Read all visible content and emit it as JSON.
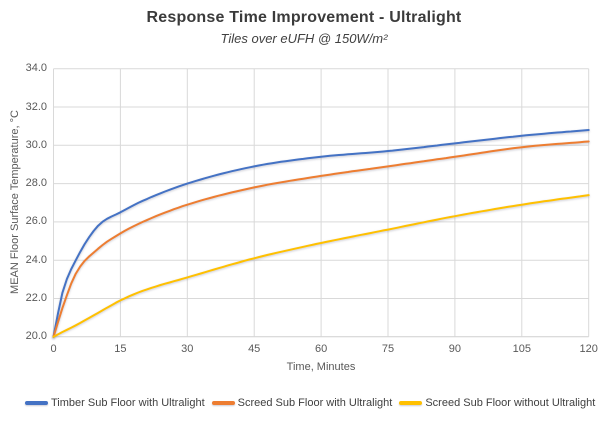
{
  "chart_data": {
    "type": "line",
    "title": "Response Time Improvement - Ultralight",
    "subtitle": "Tiles over eUFH @ 150W/m²",
    "xlabel": "Time, Minutes",
    "ylabel": "MEAN Floor Surface Temperature, °C",
    "xlim": [
      0,
      120
    ],
    "ylim": [
      20,
      34
    ],
    "xticks": [
      0,
      15,
      30,
      45,
      60,
      75,
      90,
      105,
      120
    ],
    "yticks": [
      20,
      22,
      24,
      26,
      28,
      30,
      32,
      34
    ],
    "grid": true,
    "legend_position": "bottom",
    "x": [
      0,
      2,
      5,
      10,
      15,
      20,
      30,
      45,
      60,
      75,
      90,
      105,
      120
    ],
    "series": [
      {
        "name": "Timber Sub Floor with Ultralight",
        "color": "#4472C4",
        "values": [
          20.0,
          22.3,
          24.0,
          25.8,
          26.5,
          27.1,
          28.0,
          28.9,
          29.4,
          29.7,
          30.1,
          30.5,
          30.8
        ]
      },
      {
        "name": "Screed Sub Floor with Ultralight",
        "color": "#ED7D31",
        "values": [
          20.0,
          21.5,
          23.3,
          24.6,
          25.4,
          26.0,
          26.9,
          27.8,
          28.4,
          28.9,
          29.4,
          29.9,
          30.2
        ]
      },
      {
        "name": "Screed Sub Floor without Ultralight",
        "color": "#FFC000",
        "values": [
          20.0,
          20.25,
          20.6,
          21.25,
          21.9,
          22.4,
          23.1,
          24.1,
          24.9,
          25.6,
          26.3,
          26.9,
          27.4
        ]
      }
    ]
  },
  "style": {
    "gridline_color": "#d9d9d9",
    "axis_line_color": "#cfcfcf",
    "tick_text_color": "#595959",
    "title_color": "#3b3b3b"
  }
}
